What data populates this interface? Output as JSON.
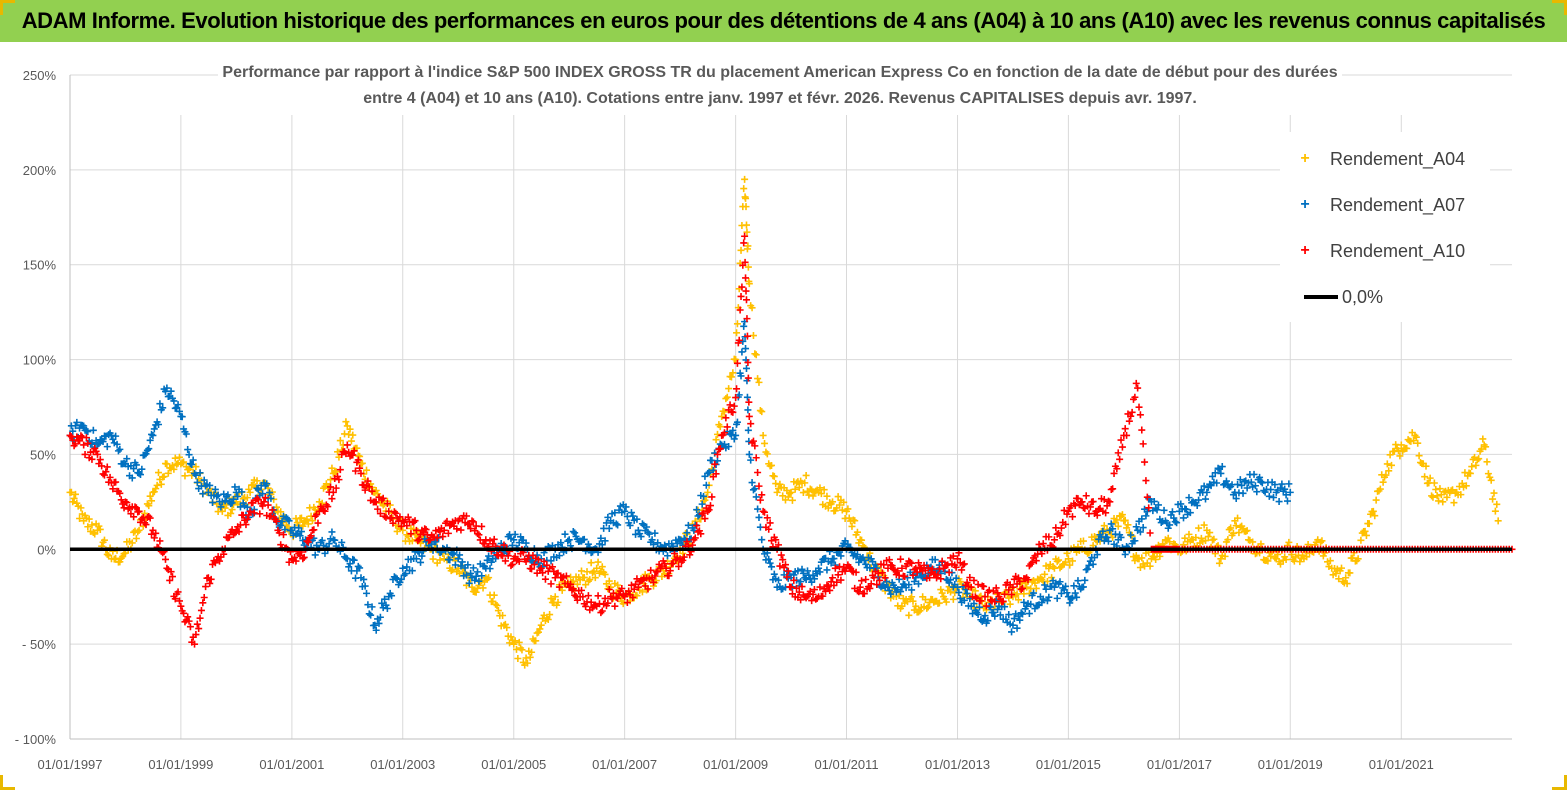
{
  "page_title": "ADAM Informe. Evolution historique des performances en euros pour des détentions de 4 ans (A04) à 10 ans (A10) avec les revenus connus capitalisés",
  "colors": {
    "banner": "#92d050",
    "a04": "#ffc000",
    "a07": "#0070c0",
    "a10": "#ff0000",
    "zero": "#000000",
    "grid": "#d9d9d9"
  },
  "chart_data": {
    "type": "scatter",
    "title_line1": "Performance par rapport à l'indice S&P 500 INDEX GROSS TR  du placement American Express Co en fonction de la date de début pour des durées",
    "title_line2": "entre 4 (A04) et 10 ans (A10). Cotations entre janv. 1997 et févr. 2026. Revenus CAPITALISES depuis avr. 1997.",
    "xlabel": "",
    "ylabel": "",
    "x_range": [
      "1997-01-01",
      "2022-12-31"
    ],
    "ylim": [
      -100,
      250
    ],
    "y_ticks": [
      "250%",
      "200%",
      "150%",
      "100%",
      "50%",
      "0%",
      "- 50%",
      "- 100%"
    ],
    "y_tick_values": [
      250,
      200,
      150,
      100,
      50,
      0,
      -50,
      -100
    ],
    "x_ticks": [
      "01/01/1997",
      "01/01/1999",
      "01/01/2001",
      "01/01/2003",
      "01/01/2005",
      "01/01/2007",
      "01/01/2009",
      "01/01/2011",
      "01/01/2013",
      "01/01/2015",
      "01/01/2017",
      "01/01/2019",
      "01/01/2021"
    ],
    "x_tick_dates": [
      "1997-01-01",
      "1999-01-01",
      "2001-01-01",
      "2003-01-01",
      "2005-01-01",
      "2007-01-01",
      "2009-01-01",
      "2011-01-01",
      "2013-01-01",
      "2015-01-01",
      "2017-01-01",
      "2019-01-01",
      "2021-01-01"
    ],
    "legend_position": "top-right",
    "grid": true,
    "series": [
      {
        "name": "Rendement_A04",
        "marker": "+",
        "x": [
          "1997-01-01",
          "1997-04-01",
          "1997-07-01",
          "1997-10-01",
          "1998-01-01",
          "1998-04-01",
          "1998-07-01",
          "1998-10-01",
          "1999-01-01",
          "1999-04-01",
          "1999-07-01",
          "1999-10-01",
          "2000-01-01",
          "2000-04-01",
          "2000-07-01",
          "2000-10-01",
          "2001-01-01",
          "2001-04-01",
          "2001-07-01",
          "2001-10-01",
          "2002-01-01",
          "2002-04-01",
          "2002-07-01",
          "2002-10-01",
          "2003-01-01",
          "2003-04-01",
          "2003-07-01",
          "2003-10-01",
          "2004-01-01",
          "2004-04-01",
          "2004-07-01",
          "2004-10-01",
          "2005-01-01",
          "2005-04-01",
          "2005-07-01",
          "2005-10-01",
          "2006-01-01",
          "2006-04-01",
          "2006-07-01",
          "2006-10-01",
          "2007-01-01",
          "2007-04-01",
          "2007-07-01",
          "2007-10-01",
          "2008-01-01",
          "2008-04-01",
          "2008-07-01",
          "2008-10-01",
          "2009-01-01",
          "2009-03-01",
          "2009-04-01",
          "2009-07-01",
          "2009-10-01",
          "2010-01-01",
          "2010-04-01",
          "2010-07-01",
          "2010-10-01",
          "2011-01-01",
          "2011-04-01",
          "2011-07-01",
          "2011-10-01",
          "2012-01-01",
          "2012-04-01",
          "2012-07-01",
          "2012-10-01",
          "2013-01-01",
          "2013-04-01",
          "2013-07-01",
          "2013-10-01",
          "2014-01-01",
          "2014-04-01",
          "2014-07-01",
          "2014-10-01",
          "2015-01-01",
          "2015-04-01",
          "2015-07-01",
          "2015-10-01",
          "2016-01-01",
          "2016-04-01",
          "2016-07-01",
          "2016-10-01",
          "2017-01-01",
          "2017-04-01",
          "2017-07-01",
          "2017-10-01",
          "2018-01-01",
          "2018-04-01",
          "2018-07-01",
          "2018-10-01",
          "2019-01-01",
          "2019-04-01",
          "2019-07-01",
          "2019-10-01",
          "2020-01-01",
          "2020-04-01",
          "2020-07-01",
          "2020-10-01",
          "2021-01-01",
          "2021-04-01",
          "2021-07-01",
          "2021-10-01",
          "2022-01-01",
          "2022-04-01",
          "2022-07-01",
          "2022-10-01"
        ],
        "y": [
          30,
          15,
          10,
          -5,
          -2,
          10,
          30,
          45,
          45,
          40,
          30,
          20,
          25,
          30,
          35,
          20,
          10,
          15,
          25,
          40,
          65,
          45,
          30,
          20,
          10,
          5,
          0,
          -5,
          -10,
          -20,
          -15,
          -35,
          -50,
          -60,
          -40,
          -25,
          -20,
          -15,
          -10,
          -20,
          -25,
          -20,
          -15,
          -10,
          0,
          10,
          30,
          70,
          100,
          195,
          140,
          60,
          30,
          30,
          35,
          30,
          25,
          20,
          5,
          -10,
          -20,
          -30,
          -30,
          -28,
          -25,
          -20,
          -25,
          -30,
          -28,
          -25,
          -20,
          -15,
          -10,
          -5,
          0,
          5,
          10,
          15,
          -5,
          -5,
          5,
          0,
          5,
          10,
          -5,
          15,
          5,
          0,
          -5,
          0,
          -5,
          5,
          -10,
          -15,
          0,
          20,
          45,
          55,
          60,
          35,
          25,
          30,
          40,
          55,
          15
        ]
      },
      {
        "name": "Rendement_A07",
        "marker": "+",
        "x": [
          "1997-01-01",
          "1997-04-01",
          "1997-07-01",
          "1997-10-01",
          "1998-01-01",
          "1998-04-01",
          "1998-07-01",
          "1998-10-01",
          "1999-01-01",
          "1999-04-01",
          "1999-07-01",
          "1999-10-01",
          "2000-01-01",
          "2000-04-01",
          "2000-07-01",
          "2000-10-01",
          "2001-01-01",
          "2001-04-01",
          "2001-07-01",
          "2001-10-01",
          "2002-01-01",
          "2002-04-01",
          "2002-07-01",
          "2002-10-01",
          "2003-01-01",
          "2003-04-01",
          "2003-07-01",
          "2003-10-01",
          "2004-01-01",
          "2004-04-01",
          "2004-07-01",
          "2004-10-01",
          "2005-01-01",
          "2005-04-01",
          "2005-07-01",
          "2005-10-01",
          "2006-01-01",
          "2006-04-01",
          "2006-07-01",
          "2006-10-01",
          "2007-01-01",
          "2007-04-01",
          "2007-07-01",
          "2007-10-01",
          "2008-01-01",
          "2008-04-01",
          "2008-07-01",
          "2008-10-01",
          "2009-01-01",
          "2009-03-01",
          "2009-04-01",
          "2009-07-01",
          "2009-10-01",
          "2010-01-01",
          "2010-04-01",
          "2010-07-01",
          "2010-10-01",
          "2011-01-01",
          "2011-04-01",
          "2011-07-01",
          "2011-10-01",
          "2012-01-01",
          "2012-04-01",
          "2012-07-01",
          "2012-10-01",
          "2013-01-01",
          "2013-04-01",
          "2013-07-01",
          "2013-10-01",
          "2014-01-01",
          "2014-04-01",
          "2014-07-01",
          "2014-10-01",
          "2015-01-01",
          "2015-04-01",
          "2015-07-01",
          "2015-10-01",
          "2016-01-01",
          "2016-04-01",
          "2016-07-01",
          "2016-10-01",
          "2017-01-01",
          "2017-04-01",
          "2017-07-01",
          "2017-10-01",
          "2018-01-01",
          "2018-04-01",
          "2018-07-01",
          "2018-10-01",
          "2019-01-01"
        ],
        "y": [
          60,
          65,
          55,
          60,
          45,
          40,
          60,
          85,
          70,
          40,
          30,
          25,
          30,
          20,
          35,
          15,
          10,
          5,
          0,
          5,
          -5,
          -15,
          -40,
          -25,
          -10,
          -5,
          5,
          0,
          -5,
          -15,
          -10,
          0,
          5,
          0,
          -5,
          0,
          5,
          5,
          0,
          15,
          20,
          10,
          5,
          0,
          5,
          10,
          40,
          55,
          60,
          120,
          50,
          0,
          -20,
          -15,
          -15,
          -10,
          -5,
          0,
          -5,
          -10,
          -20,
          -20,
          -15,
          -10,
          -10,
          -20,
          -30,
          -35,
          -30,
          -40,
          -30,
          -25,
          -20,
          -25,
          -20,
          0,
          10,
          0,
          10,
          25,
          15,
          20,
          25,
          30,
          40,
          30,
          35,
          35,
          30,
          30
        ]
      },
      {
        "name": "Rendement_A10",
        "marker": "+",
        "x": [
          "1997-01-01",
          "1997-04-01",
          "1997-07-01",
          "1997-10-01",
          "1998-01-01",
          "1998-04-01",
          "1998-07-01",
          "1998-10-01",
          "1999-01-01",
          "1999-04-01",
          "1999-07-01",
          "1999-10-01",
          "2000-01-01",
          "2000-04-01",
          "2000-07-01",
          "2000-10-01",
          "2001-01-01",
          "2001-04-01",
          "2001-07-01",
          "2001-10-01",
          "2002-01-01",
          "2002-04-01",
          "2002-07-01",
          "2002-10-01",
          "2003-01-01",
          "2003-04-01",
          "2003-07-01",
          "2003-10-01",
          "2004-01-01",
          "2004-04-01",
          "2004-07-01",
          "2004-10-01",
          "2005-01-01",
          "2005-04-01",
          "2005-07-01",
          "2005-10-01",
          "2006-01-01",
          "2006-04-01",
          "2006-07-01",
          "2006-10-01",
          "2007-01-01",
          "2007-04-01",
          "2007-07-01",
          "2007-10-01",
          "2008-01-01",
          "2008-04-01",
          "2008-07-01",
          "2008-10-01",
          "2009-01-01",
          "2009-03-01",
          "2009-04-01",
          "2009-07-01",
          "2009-10-01",
          "2010-01-01",
          "2010-04-01",
          "2010-07-01",
          "2010-10-01",
          "2011-01-01",
          "2011-04-01",
          "2011-07-01",
          "2011-10-01",
          "2012-01-01",
          "2012-04-01",
          "2012-07-01",
          "2012-10-01",
          "2013-01-01",
          "2013-04-01",
          "2013-07-01",
          "2013-10-01",
          "2014-01-01",
          "2014-04-01",
          "2014-07-01",
          "2014-10-01",
          "2015-01-01",
          "2015-04-01",
          "2015-07-01",
          "2015-10-01",
          "2016-01-01",
          "2016-04-01",
          "2016-07-01",
          "2016-10-01",
          "2017-01-01",
          "2017-07-01",
          "2018-01-01",
          "2018-07-01",
          "2019-01-01",
          "2019-07-01",
          "2020-01-01",
          "2020-07-01",
          "2021-01-01",
          "2021-07-01",
          "2022-01-01",
          "2022-07-01",
          "2022-12-31"
        ],
        "y": [
          60,
          55,
          50,
          35,
          25,
          20,
          10,
          -10,
          -30,
          -50,
          -15,
          0,
          10,
          20,
          25,
          10,
          -5,
          0,
          20,
          30,
          55,
          40,
          25,
          20,
          15,
          10,
          5,
          10,
          15,
          15,
          5,
          0,
          -5,
          -5,
          -10,
          -15,
          -20,
          -25,
          -30,
          -25,
          -25,
          -20,
          -15,
          -10,
          -5,
          5,
          20,
          60,
          80,
          165,
          70,
          20,
          0,
          -20,
          -25,
          -25,
          -15,
          -10,
          -20,
          -15,
          -10,
          -10,
          -10,
          -15,
          -10,
          -5,
          -20,
          -25,
          -25,
          -20,
          -15,
          0,
          5,
          20,
          25,
          20,
          25,
          60,
          85,
          0,
          0,
          0,
          0,
          0,
          0,
          0,
          0,
          0,
          0,
          0,
          0,
          0,
          0,
          0
        ]
      },
      {
        "name": "0,0%",
        "marker": "line",
        "x": [
          "1997-01-01",
          "2022-12-31"
        ],
        "y": [
          0,
          0
        ]
      }
    ]
  }
}
